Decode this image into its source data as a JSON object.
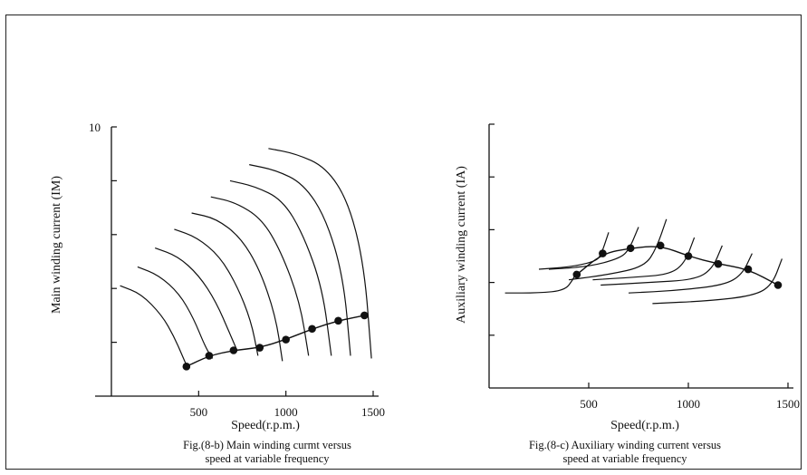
{
  "chart_data": [
    {
      "id": "left",
      "type": "line",
      "caption_line1": "Fig.(8-b) Main winding curmt versus",
      "caption_line2": "speed at variable frequency",
      "xlabel": "Speed(r.p.m.)",
      "ylabel": "Main winding current (IM)",
      "xlim": [
        0,
        1500
      ],
      "ylim": [
        0,
        10
      ],
      "x_ticks": [
        "500",
        "1000",
        "1500"
      ],
      "y_ticks": [
        "10"
      ],
      "colors": {
        "line": "#111111",
        "marker": "#111111"
      },
      "series": [
        {
          "x": [
            50,
            170,
            290,
            360,
            420,
            440
          ],
          "y": [
            4.1,
            3.8,
            3.0,
            2.2,
            1.3,
            1.0
          ]
        },
        {
          "x": [
            150,
            270,
            390,
            470,
            540,
            580
          ],
          "y": [
            4.8,
            4.5,
            3.8,
            2.9,
            1.8,
            1.4
          ]
        },
        {
          "x": [
            250,
            380,
            500,
            600,
            680,
            720
          ],
          "y": [
            5.5,
            5.2,
            4.5,
            3.5,
            2.3,
            1.7
          ]
        },
        {
          "x": [
            360,
            490,
            620,
            720,
            800,
            840
          ],
          "y": [
            6.2,
            5.9,
            5.2,
            4.1,
            2.8,
            1.5
          ]
        },
        {
          "x": [
            460,
            600,
            740,
            850,
            940,
            980
          ],
          "y": [
            6.8,
            6.6,
            5.9,
            4.7,
            3.0,
            1.3
          ]
        },
        {
          "x": [
            570,
            710,
            860,
            970,
            1080,
            1130
          ],
          "y": [
            7.4,
            7.2,
            6.6,
            5.4,
            3.5,
            1.5
          ]
        },
        {
          "x": [
            680,
            820,
            980,
            1100,
            1210,
            1260
          ],
          "y": [
            8.0,
            7.8,
            7.3,
            6.0,
            4.0,
            1.5
          ]
        },
        {
          "x": [
            790,
            940,
            1100,
            1230,
            1330,
            1370
          ],
          "y": [
            8.6,
            8.4,
            7.9,
            6.6,
            4.4,
            1.5
          ]
        },
        {
          "x": [
            900,
            1060,
            1230,
            1360,
            1450,
            1490
          ],
          "y": [
            9.2,
            9.0,
            8.5,
            7.2,
            4.8,
            1.4
          ]
        },
        {
          "marker": true,
          "x": [
            430,
            560,
            700,
            850,
            1000,
            1150,
            1300,
            1450
          ],
          "y": [
            1.1,
            1.5,
            1.7,
            1.8,
            2.1,
            2.5,
            2.8,
            3.0
          ]
        }
      ]
    },
    {
      "id": "right",
      "type": "line",
      "caption_line1": "Fig.(8-c) Auxiliary winding current versus",
      "caption_line2": "speed at variable frequency",
      "xlabel": "Speed(r.p.m.)",
      "ylabel": "Auxiliary winding current (IA)",
      "xlim": [
        0,
        1500
      ],
      "ylim": [
        0,
        10
      ],
      "x_ticks": [
        "500",
        "1000",
        "1500"
      ],
      "y_ticks": [],
      "colors": {
        "line": "#111111",
        "marker": "#111111"
      },
      "series": [
        {
          "x": [
            80,
            250,
            380,
            420,
            440
          ],
          "y": [
            3.6,
            3.6,
            3.7,
            4.1,
            4.4
          ]
        },
        {
          "x": [
            250,
            420,
            530,
            560,
            600
          ],
          "y": [
            4.5,
            4.6,
            4.8,
            5.0,
            5.9
          ]
        },
        {
          "x": [
            300,
            500,
            650,
            700,
            750
          ],
          "y": [
            4.5,
            4.6,
            4.9,
            5.2,
            6.1
          ]
        },
        {
          "x": [
            400,
            600,
            780,
            840,
            890
          ],
          "y": [
            4.1,
            4.3,
            4.6,
            5.3,
            6.4
          ]
        },
        {
          "x": [
            520,
            730,
            900,
            980,
            1030
          ],
          "y": [
            4.1,
            4.2,
            4.3,
            4.7,
            5.7
          ]
        },
        {
          "x": [
            560,
            800,
            1030,
            1120,
            1170
          ],
          "y": [
            3.9,
            4.0,
            4.1,
            4.5,
            5.4
          ]
        },
        {
          "x": [
            700,
            950,
            1180,
            1270,
            1320
          ],
          "y": [
            3.6,
            3.7,
            3.9,
            4.3,
            5.1
          ]
        },
        {
          "x": [
            820,
            1100,
            1330,
            1420,
            1470
          ],
          "y": [
            3.2,
            3.3,
            3.5,
            3.9,
            4.9
          ]
        },
        {
          "marker": true,
          "x": [
            440,
            570,
            710,
            860,
            1000,
            1150,
            1300,
            1450
          ],
          "y": [
            4.3,
            5.1,
            5.3,
            5.4,
            5.0,
            4.7,
            4.5,
            3.9
          ]
        }
      ]
    }
  ]
}
